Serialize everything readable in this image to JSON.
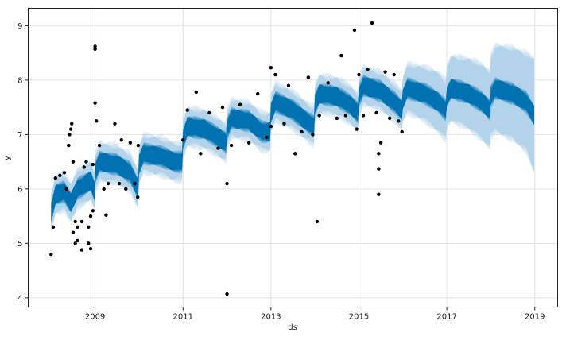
{
  "chart_data": {
    "type": "line",
    "title": "",
    "xlabel": "ds",
    "ylabel": "y",
    "xlim": [
      2007.48,
      2019.52
    ],
    "ylim": [
      3.83,
      9.32
    ],
    "grid": true,
    "x_ticks": [
      2009,
      2011,
      2013,
      2015,
      2017,
      2019
    ],
    "x_tick_labels": [
      "2009",
      "2011",
      "2013",
      "2015",
      "2017",
      "2019"
    ],
    "y_ticks": [
      4,
      5,
      6,
      7,
      8,
      9
    ],
    "y_tick_labels": [
      "4",
      "5",
      "6",
      "7",
      "8",
      "9"
    ],
    "colors": {
      "forecast": "#0072B2",
      "interval": "#b3d3ea",
      "observed": "#000000",
      "grid": "#e2e2e2"
    },
    "weekly_amplitude": 0.22,
    "forecast": {
      "x": [
        2008.0,
        2008.1,
        2008.3,
        2008.45,
        2008.6,
        2008.9,
        2008.99,
        2009.0,
        2009.1,
        2009.5,
        2009.8,
        2009.98,
        2010.0,
        2010.1,
        2010.5,
        2010.8,
        2010.98,
        2011.0,
        2011.1,
        2011.5,
        2011.8,
        2011.98,
        2012.0,
        2012.1,
        2012.5,
        2012.8,
        2012.98,
        2013.0,
        2013.1,
        2013.5,
        2013.8,
        2013.98,
        2014.0,
        2014.1,
        2014.5,
        2014.8,
        2014.98,
        2015.0,
        2015.1,
        2015.5,
        2015.8,
        2015.98,
        2016.0,
        2016.1,
        2016.5,
        2016.8,
        2016.98,
        2017.0,
        2017.1,
        2017.5,
        2017.8,
        2017.98,
        2018.0,
        2018.1,
        2018.5,
        2018.8,
        2018.99
      ],
      "yhat": [
        5.55,
        5.9,
        5.95,
        5.75,
        6.0,
        6.15,
        5.95,
        6.3,
        6.5,
        6.45,
        6.3,
        6.0,
        6.45,
        6.65,
        6.6,
        6.5,
        6.5,
        6.9,
        7.15,
        7.1,
        6.95,
        6.85,
        7.1,
        7.3,
        7.25,
        7.05,
        7.05,
        7.4,
        7.6,
        7.45,
        7.25,
        7.15,
        7.55,
        7.75,
        7.7,
        7.55,
        7.4,
        7.7,
        7.9,
        7.8,
        7.6,
        7.45,
        7.65,
        7.85,
        7.75,
        7.6,
        7.45,
        7.7,
        7.85,
        7.75,
        7.6,
        7.45,
        7.7,
        7.85,
        7.75,
        7.6,
        7.35
      ],
      "lower": [
        5.2,
        5.55,
        5.6,
        5.4,
        5.65,
        5.8,
        5.6,
        5.95,
        6.15,
        6.1,
        5.95,
        5.65,
        6.1,
        6.3,
        6.25,
        6.15,
        6.15,
        6.55,
        6.8,
        6.75,
        6.6,
        6.5,
        6.75,
        6.95,
        6.9,
        6.7,
        6.7,
        7.05,
        7.25,
        7.1,
        6.9,
        6.8,
        7.2,
        7.4,
        7.35,
        7.2,
        7.05,
        7.35,
        7.55,
        7.45,
        7.25,
        7.1,
        7.25,
        7.4,
        7.25,
        7.05,
        6.9,
        7.15,
        7.25,
        7.1,
        6.9,
        6.75,
        6.95,
        7.05,
        6.9,
        6.7,
        6.3
      ],
      "upper": [
        5.9,
        6.25,
        6.3,
        6.1,
        6.35,
        6.5,
        6.3,
        6.65,
        6.85,
        6.8,
        6.65,
        6.35,
        6.8,
        7.0,
        6.95,
        6.85,
        6.85,
        7.25,
        7.5,
        7.45,
        7.3,
        7.2,
        7.45,
        7.65,
        7.6,
        7.4,
        7.4,
        7.75,
        7.95,
        7.8,
        7.6,
        7.5,
        7.9,
        8.1,
        8.05,
        7.9,
        7.75,
        8.05,
        8.25,
        8.15,
        7.95,
        7.8,
        8.05,
        8.3,
        8.25,
        8.15,
        8.0,
        8.25,
        8.45,
        8.4,
        8.3,
        8.15,
        8.45,
        8.65,
        8.6,
        8.5,
        8.4
      ]
    },
    "observed": {
      "x": [
        2008.0,
        2008.05,
        2008.1,
        2008.2,
        2008.3,
        2008.35,
        2008.4,
        2008.42,
        2008.45,
        2008.47,
        2008.5,
        2008.5,
        2008.55,
        2008.55,
        2008.6,
        2008.6,
        2008.7,
        2008.7,
        2008.75,
        2008.8,
        2008.85,
        2008.85,
        2008.9,
        2008.9,
        2008.95,
        2008.95,
        2009.0,
        2009.0,
        2009.0,
        2009.03,
        2009.1,
        2009.2,
        2009.25,
        2009.3,
        2009.45,
        2009.55,
        2009.6,
        2009.7,
        2009.8,
        2009.9,
        2009.97,
        2009.98,
        2011.0,
        2011.1,
        2011.3,
        2011.4,
        2011.6,
        2011.8,
        2011.9,
        2012.0,
        2012.0,
        2012.1,
        2012.3,
        2012.5,
        2012.7,
        2012.9,
        2013.0,
        2013.0,
        2013.1,
        2013.3,
        2013.4,
        2013.55,
        2013.7,
        2013.85,
        2013.95,
        2014.05,
        2014.1,
        2014.3,
        2014.5,
        2014.6,
        2014.7,
        2014.9,
        2014.95,
        2015.0,
        2015.1,
        2015.2,
        2015.3,
        2015.4,
        2015.45,
        2015.45,
        2015.45,
        2015.5,
        2015.6,
        2015.7,
        2015.8,
        2015.9,
        2015.98
      ],
      "y": [
        4.8,
        5.3,
        6.2,
        6.25,
        6.3,
        6.0,
        6.8,
        7.0,
        7.1,
        7.2,
        6.5,
        5.2,
        5.0,
        5.4,
        5.05,
        5.3,
        4.88,
        5.4,
        6.4,
        6.5,
        5.0,
        5.3,
        4.9,
        5.5,
        5.6,
        6.45,
        8.62,
        8.57,
        7.58,
        7.25,
        6.8,
        6.0,
        5.52,
        6.1,
        7.2,
        6.1,
        6.9,
        6.0,
        6.85,
        6.1,
        5.85,
        6.8,
        6.9,
        7.45,
        7.78,
        6.65,
        7.4,
        6.75,
        7.5,
        6.1,
        4.07,
        6.8,
        7.55,
        6.85,
        7.75,
        6.95,
        8.23,
        7.15,
        8.1,
        7.2,
        7.9,
        6.65,
        7.05,
        8.05,
        7.0,
        5.4,
        7.35,
        7.95,
        7.3,
        8.45,
        7.35,
        8.92,
        7.1,
        8.1,
        7.35,
        8.2,
        9.05,
        7.4,
        5.9,
        6.37,
        6.65,
        6.85,
        8.15,
        7.3,
        8.1,
        7.25,
        7.05
      ]
    }
  }
}
